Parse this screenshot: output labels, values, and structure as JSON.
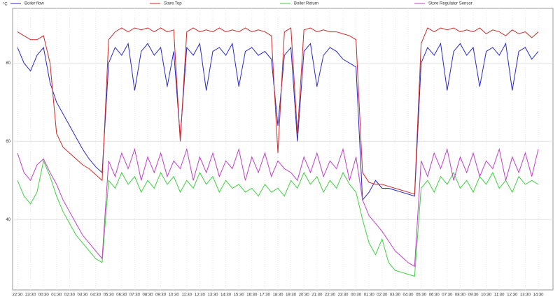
{
  "chart_data": {
    "type": "line",
    "y_label": "°C",
    "categories": [
      "22:30",
      null,
      "23:30",
      null,
      "00:30",
      null,
      "01:30",
      null,
      "02:30",
      null,
      "03:30",
      null,
      "04:30",
      null,
      "05:30",
      null,
      "06:30",
      null,
      "07:30",
      null,
      "08:30",
      null,
      "09:30",
      null,
      "10:30",
      null,
      "11:30",
      null,
      "12:30",
      null,
      "13:30",
      null,
      "14:30",
      null,
      "15:30",
      null,
      "16:30",
      null,
      "17:30",
      null,
      "18:30",
      null,
      "19:30",
      null,
      "20:30",
      null,
      "21:30",
      null,
      "22:30",
      null,
      "23:30",
      null,
      "00:30",
      null,
      "01:30",
      null,
      "02:30",
      null,
      "03:30",
      null,
      "04:30",
      null,
      "05:30",
      null,
      "06:30",
      null,
      "07:30",
      null,
      "08:30",
      null,
      "09:30",
      null,
      "10:30",
      null,
      "11:30",
      null,
      "12:30",
      null,
      "13:30",
      null,
      "14:30"
    ],
    "series": [
      {
        "name": "Boiler flow",
        "color": "#2828c8",
        "values": [
          84,
          80,
          78,
          82,
          84,
          75,
          70,
          67,
          64,
          61,
          58,
          55.5,
          53.5,
          52,
          80,
          84,
          82,
          85,
          73,
          83,
          85,
          82,
          84,
          74,
          83,
          61,
          84,
          82,
          85,
          73,
          83,
          84,
          82,
          85,
          74,
          83,
          84,
          82,
          83,
          81,
          64,
          82,
          84,
          60,
          83,
          85,
          74,
          82,
          84,
          83,
          81,
          80,
          79,
          45,
          47,
          50,
          48,
          48,
          47.5,
          47,
          46.5,
          46,
          80,
          84,
          82,
          85,
          73,
          83,
          85,
          82,
          84,
          74,
          83,
          84,
          82,
          85,
          73,
          83,
          84,
          81,
          83
        ]
      },
      {
        "name": "Store Top",
        "color": "#d02828",
        "values": [
          88,
          87,
          86,
          86,
          87,
          80,
          62,
          58.5,
          57,
          55.5,
          54,
          53,
          51.5,
          50,
          86,
          88,
          89,
          88,
          89,
          88.5,
          89,
          88,
          89,
          88,
          88.5,
          60,
          88,
          89,
          88,
          88.5,
          88,
          89,
          88,
          88.5,
          88,
          89,
          88,
          88.5,
          88,
          87,
          57,
          88,
          89,
          62,
          88.5,
          89,
          88,
          88.5,
          88,
          88,
          87.5,
          87,
          86,
          52,
          49.5,
          49,
          49,
          48.5,
          48,
          47.5,
          47,
          46.5,
          85,
          89,
          88,
          89,
          88.5,
          89,
          88,
          88.5,
          88,
          89,
          87.5,
          88.5,
          88,
          87,
          88.5,
          87.5,
          88,
          86.5,
          88
        ]
      },
      {
        "name": "Boiler Return",
        "color": "#40d040",
        "values": [
          50,
          46,
          44,
          47,
          55,
          51,
          46,
          42,
          39,
          36,
          34,
          32,
          30,
          29,
          50,
          48,
          52,
          49,
          51,
          47,
          50,
          48,
          52,
          49,
          51,
          47,
          50,
          48,
          52,
          49,
          51,
          47,
          50,
          48,
          49,
          47,
          48,
          46,
          49,
          47,
          48,
          46,
          50,
          48,
          52,
          49,
          51,
          47,
          50,
          48,
          52,
          49,
          47,
          40,
          34,
          31,
          35,
          29,
          27,
          26.5,
          26,
          25.5,
          48,
          50,
          47,
          51,
          49,
          52,
          48,
          50,
          47,
          51,
          49,
          52,
          48,
          50,
          47,
          51,
          49,
          50,
          49
        ]
      },
      {
        "name": "Store Regulator Sensor",
        "color": "#c040c8",
        "values": [
          57,
          52,
          50,
          54,
          55.5,
          52,
          49,
          45,
          42,
          39,
          36,
          34,
          32,
          30,
          55,
          51,
          57,
          53,
          58,
          50,
          56,
          52,
          57,
          51,
          55,
          53,
          58,
          50,
          56,
          52,
          57,
          51,
          55,
          53,
          58,
          50,
          56,
          52,
          57,
          51,
          55,
          53,
          52,
          50,
          56,
          52,
          57,
          51,
          55,
          53,
          58,
          50,
          56,
          45,
          41,
          39,
          37,
          34.5,
          32,
          30.5,
          29,
          28,
          55,
          51,
          57,
          53,
          58,
          50,
          56,
          52,
          57,
          51,
          55,
          53,
          58,
          50,
          56,
          52,
          57,
          51,
          58
        ]
      }
    ],
    "ylim": [
      22,
      94
    ],
    "yticks": [
      40,
      60,
      80
    ],
    "grid": true
  }
}
